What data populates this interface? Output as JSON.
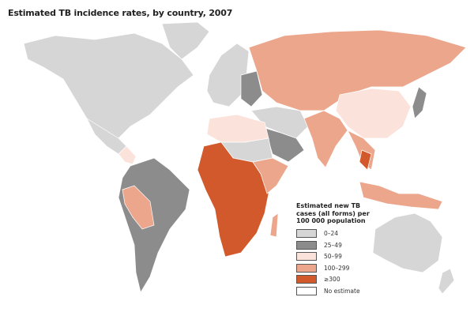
{
  "title": "Estimated TB incidence rates, by country, 2007",
  "legend": {
    "title_lines": [
      "Estimated new TB",
      "cases (all forms) per",
      "100 000 population"
    ],
    "items": [
      {
        "label": "0–24",
        "color": "#d6d6d6"
      },
      {
        "label": "25–49",
        "color": "#8c8c8c"
      },
      {
        "label": "50–99",
        "color": "#fbe2da"
      },
      {
        "label": "100–299",
        "color": "#eba68c"
      },
      {
        "label": "≥300",
        "color": "#d2592b"
      },
      {
        "label": "No estimate",
        "color": "#ffffff"
      }
    ]
  },
  "regions": [
    {
      "name": "north-america",
      "category": "0–24"
    },
    {
      "name": "greenland",
      "category": "0–24"
    },
    {
      "name": "mexico",
      "category": "0–24"
    },
    {
      "name": "central-america",
      "category": "50–99"
    },
    {
      "name": "south-america",
      "category": "25–49"
    },
    {
      "name": "andes-bolivia-peru",
      "category": "100–299"
    },
    {
      "name": "europe-west",
      "category": "0–24"
    },
    {
      "name": "europe-east",
      "category": "25–49"
    },
    {
      "name": "russia-central-asia",
      "category": "100–299"
    },
    {
      "name": "china",
      "category": "50–99"
    },
    {
      "name": "middle-east",
      "category": "0–24"
    },
    {
      "name": "arabia",
      "category": "25–49"
    },
    {
      "name": "north-africa",
      "category": "50–99"
    },
    {
      "name": "sahara",
      "category": "0–24"
    },
    {
      "name": "central-southern-africa",
      "category": "≥300"
    },
    {
      "name": "east-africa-horn",
      "category": "100–299"
    },
    {
      "name": "madagascar",
      "category": "100–299"
    },
    {
      "name": "south-asia",
      "category": "100–299"
    },
    {
      "name": "southeast-asia",
      "category": "100–299"
    },
    {
      "name": "cambodia-myanmar",
      "category": "≥300"
    },
    {
      "name": "indonesia-png",
      "category": "100–299"
    },
    {
      "name": "australia",
      "category": "0–24"
    },
    {
      "name": "new-zealand",
      "category": "0–24"
    },
    {
      "name": "japan-korea",
      "category": "25–49"
    }
  ]
}
